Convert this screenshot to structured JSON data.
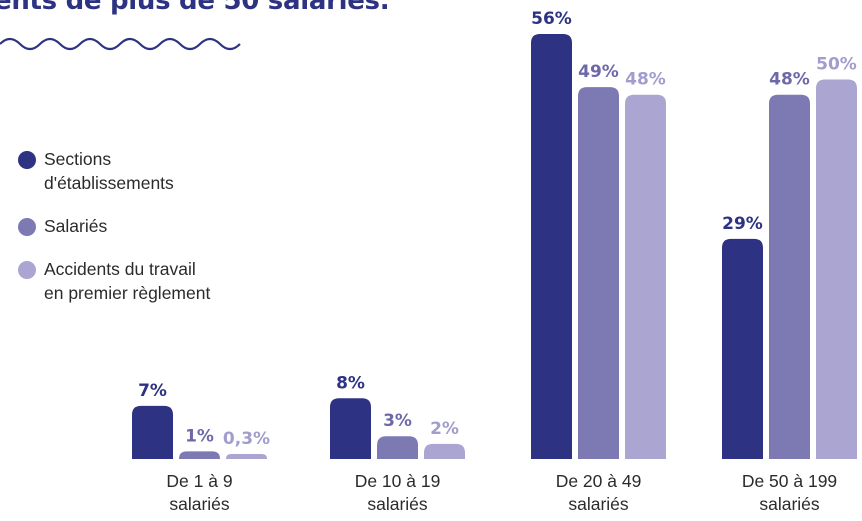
{
  "title": "ents de plus de 50 salariés.",
  "chart_data": {
    "type": "bar",
    "categories": [
      "De 1 à 9\nsalariés",
      "De 10 à 19\nsalariés",
      "De 20 à 49\nsalariés",
      "De 50 à 199\nsalariés"
    ],
    "series": [
      {
        "name": "Sections\nd'établissements",
        "values": [
          7,
          8,
          56,
          29
        ],
        "labels": [
          "7%",
          "8%",
          "56%",
          "29%"
        ],
        "color": "#2d3282",
        "label_color": "#2d3282"
      },
      {
        "name": "Salariés",
        "values": [
          1,
          3,
          49,
          48
        ],
        "labels": [
          "1%",
          "3%",
          "49%",
          "48%"
        ],
        "color": "#7c79b3",
        "label_color": "#6d69a8"
      },
      {
        "name": "Accidents du travail\nen premier règlement",
        "values": [
          0.3,
          2,
          48,
          50
        ],
        "labels": [
          "0,3%",
          "2%",
          "48%",
          "50%"
        ],
        "color": "#aaa6d1",
        "label_color": "#a19dcc"
      }
    ],
    "ylim": [
      0,
      56
    ]
  }
}
